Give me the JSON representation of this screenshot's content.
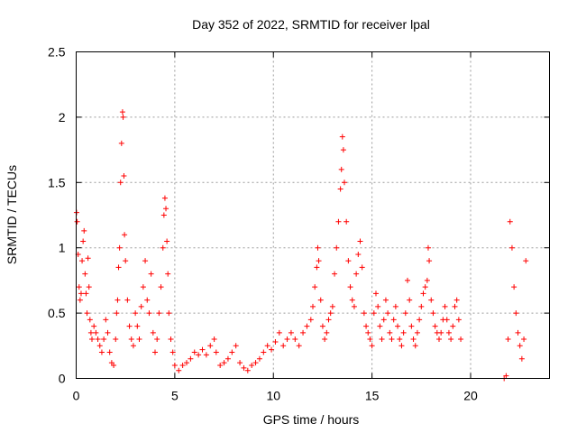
{
  "chart_data": {
    "type": "scatter",
    "title": "Day 352 of 2022, SRMTID for receiver lpal",
    "xlabel": "GPS time / hours",
    "ylabel": "SRMTID / TECUs",
    "xlim": [
      0,
      24
    ],
    "ylim": [
      0,
      2.5
    ],
    "x_ticks": [
      0,
      5,
      10,
      15,
      20
    ],
    "y_ticks": [
      0,
      0.5,
      1,
      1.5,
      2,
      2.5
    ],
    "x_tick_labels": [
      "0",
      "5",
      "10",
      "15",
      "20"
    ],
    "y_tick_labels": [
      "0",
      "0.5",
      "1",
      "1.5",
      "2",
      "2.5"
    ],
    "grid": true,
    "marker": "+",
    "marker_color": "#ff0000",
    "series": [
      {
        "name": "SRMTID",
        "points": [
          [
            0.02,
            1.27
          ],
          [
            0.05,
            1.2
          ],
          [
            0.1,
            0.95
          ],
          [
            0.15,
            0.7
          ],
          [
            0.2,
            0.6
          ],
          [
            0.25,
            0.65
          ],
          [
            0.3,
            0.9
          ],
          [
            0.35,
            1.05
          ],
          [
            0.4,
            1.13
          ],
          [
            0.45,
            0.8
          ],
          [
            0.5,
            0.65
          ],
          [
            0.55,
            0.5
          ],
          [
            0.6,
            0.92
          ],
          [
            0.65,
            0.7
          ],
          [
            0.7,
            0.45
          ],
          [
            0.75,
            0.35
          ],
          [
            0.8,
            0.3
          ],
          [
            0.9,
            0.4
          ],
          [
            1.0,
            0.35
          ],
          [
            1.1,
            0.3
          ],
          [
            1.2,
            0.25
          ],
          [
            1.3,
            0.2
          ],
          [
            1.4,
            0.3
          ],
          [
            1.5,
            0.45
          ],
          [
            1.6,
            0.35
          ],
          [
            1.7,
            0.2
          ],
          [
            1.8,
            0.12
          ],
          [
            1.9,
            0.1
          ],
          [
            2.0,
            0.3
          ],
          [
            2.05,
            0.5
          ],
          [
            2.1,
            0.6
          ],
          [
            2.15,
            0.85
          ],
          [
            2.2,
            1.0
          ],
          [
            2.25,
            1.5
          ],
          [
            2.3,
            1.8
          ],
          [
            2.35,
            2.04
          ],
          [
            2.38,
            2.0
          ],
          [
            2.42,
            1.55
          ],
          [
            2.45,
            1.1
          ],
          [
            2.5,
            0.9
          ],
          [
            2.6,
            0.6
          ],
          [
            2.7,
            0.4
          ],
          [
            2.8,
            0.3
          ],
          [
            2.9,
            0.25
          ],
          [
            3.0,
            0.5
          ],
          [
            3.1,
            0.4
          ],
          [
            3.2,
            0.3
          ],
          [
            3.3,
            0.55
          ],
          [
            3.4,
            0.7
          ],
          [
            3.5,
            0.9
          ],
          [
            3.6,
            0.6
          ],
          [
            3.7,
            0.5
          ],
          [
            3.8,
            0.8
          ],
          [
            3.9,
            0.35
          ],
          [
            4.0,
            0.2
          ],
          [
            4.1,
            0.3
          ],
          [
            4.2,
            0.5
          ],
          [
            4.3,
            0.7
          ],
          [
            4.4,
            1.0
          ],
          [
            4.45,
            1.25
          ],
          [
            4.5,
            1.38
          ],
          [
            4.55,
            1.3
          ],
          [
            4.6,
            1.05
          ],
          [
            4.65,
            0.8
          ],
          [
            4.7,
            0.5
          ],
          [
            4.8,
            0.3
          ],
          [
            4.9,
            0.2
          ],
          [
            5.0,
            0.1
          ],
          [
            5.2,
            0.06
          ],
          [
            5.4,
            0.1
          ],
          [
            5.6,
            0.12
          ],
          [
            5.8,
            0.15
          ],
          [
            6.0,
            0.2
          ],
          [
            6.2,
            0.18
          ],
          [
            6.4,
            0.22
          ],
          [
            6.6,
            0.18
          ],
          [
            6.8,
            0.25
          ],
          [
            7.0,
            0.3
          ],
          [
            7.1,
            0.2
          ],
          [
            7.3,
            0.1
          ],
          [
            7.5,
            0.12
          ],
          [
            7.7,
            0.15
          ],
          [
            7.9,
            0.2
          ],
          [
            8.1,
            0.25
          ],
          [
            8.3,
            0.12
          ],
          [
            8.5,
            0.08
          ],
          [
            8.7,
            0.06
          ],
          [
            8.9,
            0.1
          ],
          [
            9.1,
            0.12
          ],
          [
            9.3,
            0.15
          ],
          [
            9.5,
            0.2
          ],
          [
            9.7,
            0.25
          ],
          [
            9.9,
            0.22
          ],
          [
            10.1,
            0.28
          ],
          [
            10.3,
            0.35
          ],
          [
            10.5,
            0.25
          ],
          [
            10.7,
            0.3
          ],
          [
            10.9,
            0.35
          ],
          [
            11.1,
            0.3
          ],
          [
            11.3,
            0.25
          ],
          [
            11.5,
            0.35
          ],
          [
            11.7,
            0.4
          ],
          [
            11.9,
            0.45
          ],
          [
            12.0,
            0.55
          ],
          [
            12.1,
            0.7
          ],
          [
            12.2,
            0.85
          ],
          [
            12.25,
            1.0
          ],
          [
            12.3,
            0.9
          ],
          [
            12.4,
            0.6
          ],
          [
            12.5,
            0.4
          ],
          [
            12.6,
            0.3
          ],
          [
            12.7,
            0.35
          ],
          [
            12.8,
            0.45
          ],
          [
            12.9,
            0.5
          ],
          [
            13.0,
            0.55
          ],
          [
            13.1,
            0.8
          ],
          [
            13.2,
            1.0
          ],
          [
            13.3,
            1.2
          ],
          [
            13.4,
            1.45
          ],
          [
            13.45,
            1.6
          ],
          [
            13.5,
            1.85
          ],
          [
            13.55,
            1.75
          ],
          [
            13.6,
            1.5
          ],
          [
            13.7,
            1.2
          ],
          [
            13.8,
            0.9
          ],
          [
            13.9,
            0.7
          ],
          [
            14.0,
            0.6
          ],
          [
            14.1,
            0.55
          ],
          [
            14.2,
            0.8
          ],
          [
            14.3,
            0.95
          ],
          [
            14.4,
            1.05
          ],
          [
            14.5,
            0.85
          ],
          [
            14.6,
            0.5
          ],
          [
            14.7,
            0.4
          ],
          [
            14.8,
            0.35
          ],
          [
            14.9,
            0.3
          ],
          [
            15.0,
            0.25
          ],
          [
            15.1,
            0.5
          ],
          [
            15.2,
            0.65
          ],
          [
            15.3,
            0.55
          ],
          [
            15.4,
            0.4
          ],
          [
            15.5,
            0.3
          ],
          [
            15.6,
            0.45
          ],
          [
            15.7,
            0.6
          ],
          [
            15.8,
            0.5
          ],
          [
            15.9,
            0.35
          ],
          [
            16.0,
            0.3
          ],
          [
            16.1,
            0.45
          ],
          [
            16.2,
            0.55
          ],
          [
            16.3,
            0.4
          ],
          [
            16.4,
            0.3
          ],
          [
            16.5,
            0.25
          ],
          [
            16.6,
            0.35
          ],
          [
            16.7,
            0.5
          ],
          [
            16.8,
            0.75
          ],
          [
            16.9,
            0.6
          ],
          [
            17.0,
            0.4
          ],
          [
            17.1,
            0.3
          ],
          [
            17.2,
            0.25
          ],
          [
            17.3,
            0.35
          ],
          [
            17.4,
            0.45
          ],
          [
            17.5,
            0.55
          ],
          [
            17.6,
            0.65
          ],
          [
            17.7,
            0.7
          ],
          [
            17.8,
            0.75
          ],
          [
            17.85,
            1.0
          ],
          [
            17.9,
            0.9
          ],
          [
            18.0,
            0.6
          ],
          [
            18.1,
            0.5
          ],
          [
            18.2,
            0.4
          ],
          [
            18.3,
            0.35
          ],
          [
            18.4,
            0.3
          ],
          [
            18.5,
            0.35
          ],
          [
            18.6,
            0.45
          ],
          [
            18.7,
            0.55
          ],
          [
            18.8,
            0.45
          ],
          [
            18.9,
            0.35
          ],
          [
            19.0,
            0.3
          ],
          [
            19.1,
            0.4
          ],
          [
            19.2,
            0.55
          ],
          [
            19.3,
            0.6
          ],
          [
            19.4,
            0.45
          ],
          [
            19.5,
            0.3
          ],
          [
            21.7,
            0.0
          ],
          [
            21.8,
            0.02
          ],
          [
            21.9,
            0.3
          ],
          [
            22.0,
            1.2
          ],
          [
            22.1,
            1.0
          ],
          [
            22.2,
            0.7
          ],
          [
            22.3,
            0.5
          ],
          [
            22.4,
            0.35
          ],
          [
            22.5,
            0.25
          ],
          [
            22.6,
            0.15
          ],
          [
            22.7,
            0.3
          ],
          [
            22.8,
            0.9
          ]
        ]
      }
    ]
  }
}
